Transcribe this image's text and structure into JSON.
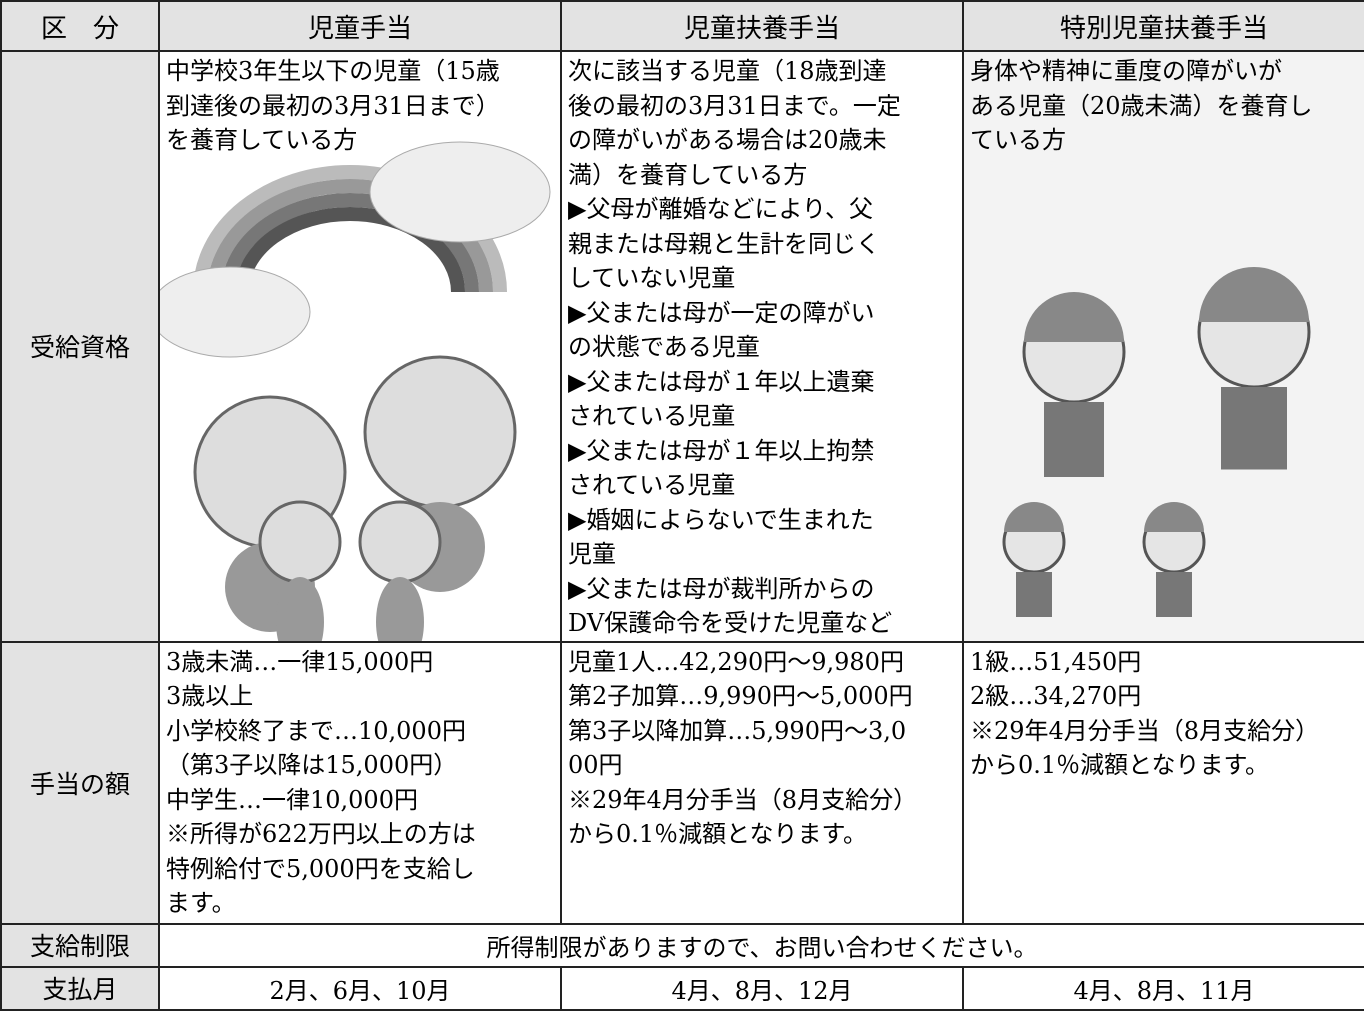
{
  "header": {
    "columns": [
      "区　分",
      "児童手当",
      "児童扶養手当",
      "特別児童扶養手当"
    ]
  },
  "rows": [
    {
      "label": "受給資格",
      "cells": [
        [
          "中学校3年生以下の児童（15歳",
          "到達後の最初の3月31日まで）",
          "を養育している方"
        ],
        [
          "次に該当する児童（18歳到達",
          "後の最初の3月31日まで。一定",
          "の障がいがある場合は20歳未",
          "満）を養育している方",
          "▶父母が離婚などにより、父",
          "親または母親と生計を同じく",
          "していない児童",
          "▶父または母が一定の障がい",
          "の状態である児童",
          "▶父または母が１年以上遺棄",
          "されている児童",
          "▶父または母が１年以上拘禁",
          "されている児童",
          "▶婚姻によらないで生まれた",
          "児童",
          "▶父または母が裁判所からの",
          "DV保護命令を受けた児童など"
        ],
        [
          "身体や精神に重度の障がいが",
          "ある児童（20歳未満）を養育し",
          "ている方"
        ]
      ]
    },
    {
      "label": "手当の額",
      "cells": [
        [
          "3歳未満…一律15,000円",
          "3歳以上",
          "小学校終了まで…10,000円",
          "（第3子以降は15,000円）",
          "中学生…一律10,000円",
          "※所得が622万円以上の方は",
          "特例給付で5,000円を支給し",
          "ます。"
        ],
        [
          "児童1人…42,290円～9,980円",
          "第2子加算…9,990円～5,000円",
          "第3子以降加算…5,990円～3,0",
          "00円",
          "※29年4月分手当（8月支給分）",
          "から0.1％減額となります。"
        ],
        [
          "1級…51,450円",
          "2級…34,270円",
          "※29年4月分手当（8月支給分）",
          "から0.1％減額となります。"
        ]
      ]
    },
    {
      "label": "支給制限",
      "merged": "所得制限がありますので、お問い合わせください。"
    },
    {
      "label": "支払月",
      "cells": [
        "2月、6月、10月",
        "4月、8月、12月",
        "4月、8月、11月"
      ]
    }
  ]
}
